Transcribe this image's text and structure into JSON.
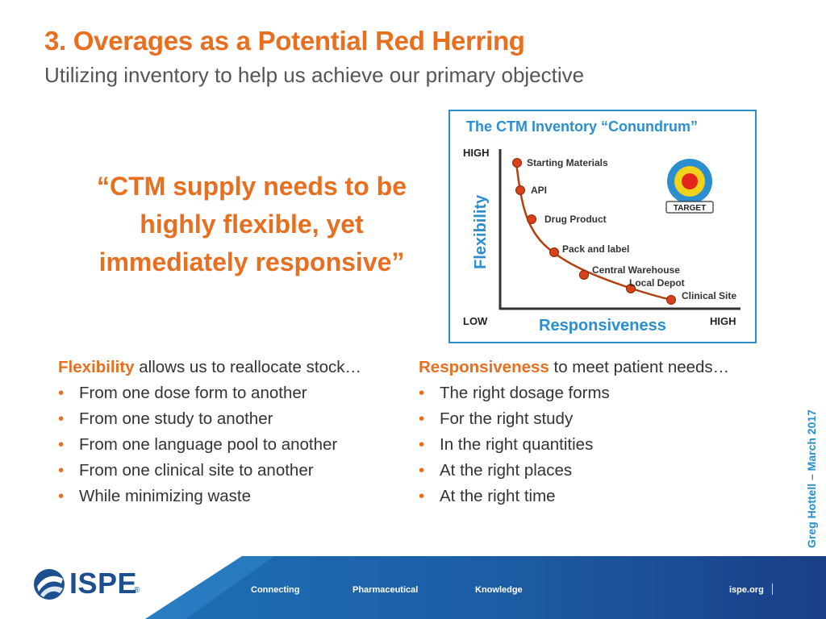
{
  "header": {
    "title": "3. Overages as a Potential Red Herring",
    "subtitle": "Utilizing inventory to help us achieve our primary objective"
  },
  "quote": {
    "line1": "“CTM supply needs to be",
    "line2": "highly flexible, yet",
    "line3": "immediately responsive”"
  },
  "figure": {
    "title": "The CTM Inventory “Conundrum”",
    "y_axis_label": "Flexibility",
    "x_axis_label": "Responsiveness",
    "y_high": "HIGH",
    "x_low": "LOW",
    "x_high": "HIGH",
    "target_label": "TARGET",
    "points": [
      {
        "label": "Starting Materials"
      },
      {
        "label": "API"
      },
      {
        "label": "Drug Product"
      },
      {
        "label": "Pack and label"
      },
      {
        "label": "Central Warehouse"
      },
      {
        "label": "Local Depot"
      },
      {
        "label": "Clinical Site"
      }
    ],
    "colors": {
      "accent": "#e86f1f",
      "blue": "#2b8fcf",
      "curve": "#b5400f",
      "marker": "#d9411a"
    }
  },
  "left_column": {
    "lead_key": "Flexibility",
    "lead_rest": " allows us to reallocate stock…",
    "items": [
      "From one dose form to another",
      "From one study to another",
      "From one language pool to another",
      "From one clinical site to another",
      "While minimizing waste"
    ]
  },
  "right_column": {
    "lead_key": "Responsiveness",
    "lead_rest": " to meet patient needs…",
    "items": [
      "The right dosage forms",
      "For the right study",
      "In the right quantities",
      "At the right places",
      "At the right time"
    ]
  },
  "bullet_glyph": "•",
  "side_credit": "Greg Hottell – March 2017",
  "footer": {
    "logo": "ISPE",
    "logo_mark": "®",
    "links": [
      "Connecting",
      "Pharmaceutical",
      "Knowledge"
    ],
    "site": "ispe.org"
  }
}
